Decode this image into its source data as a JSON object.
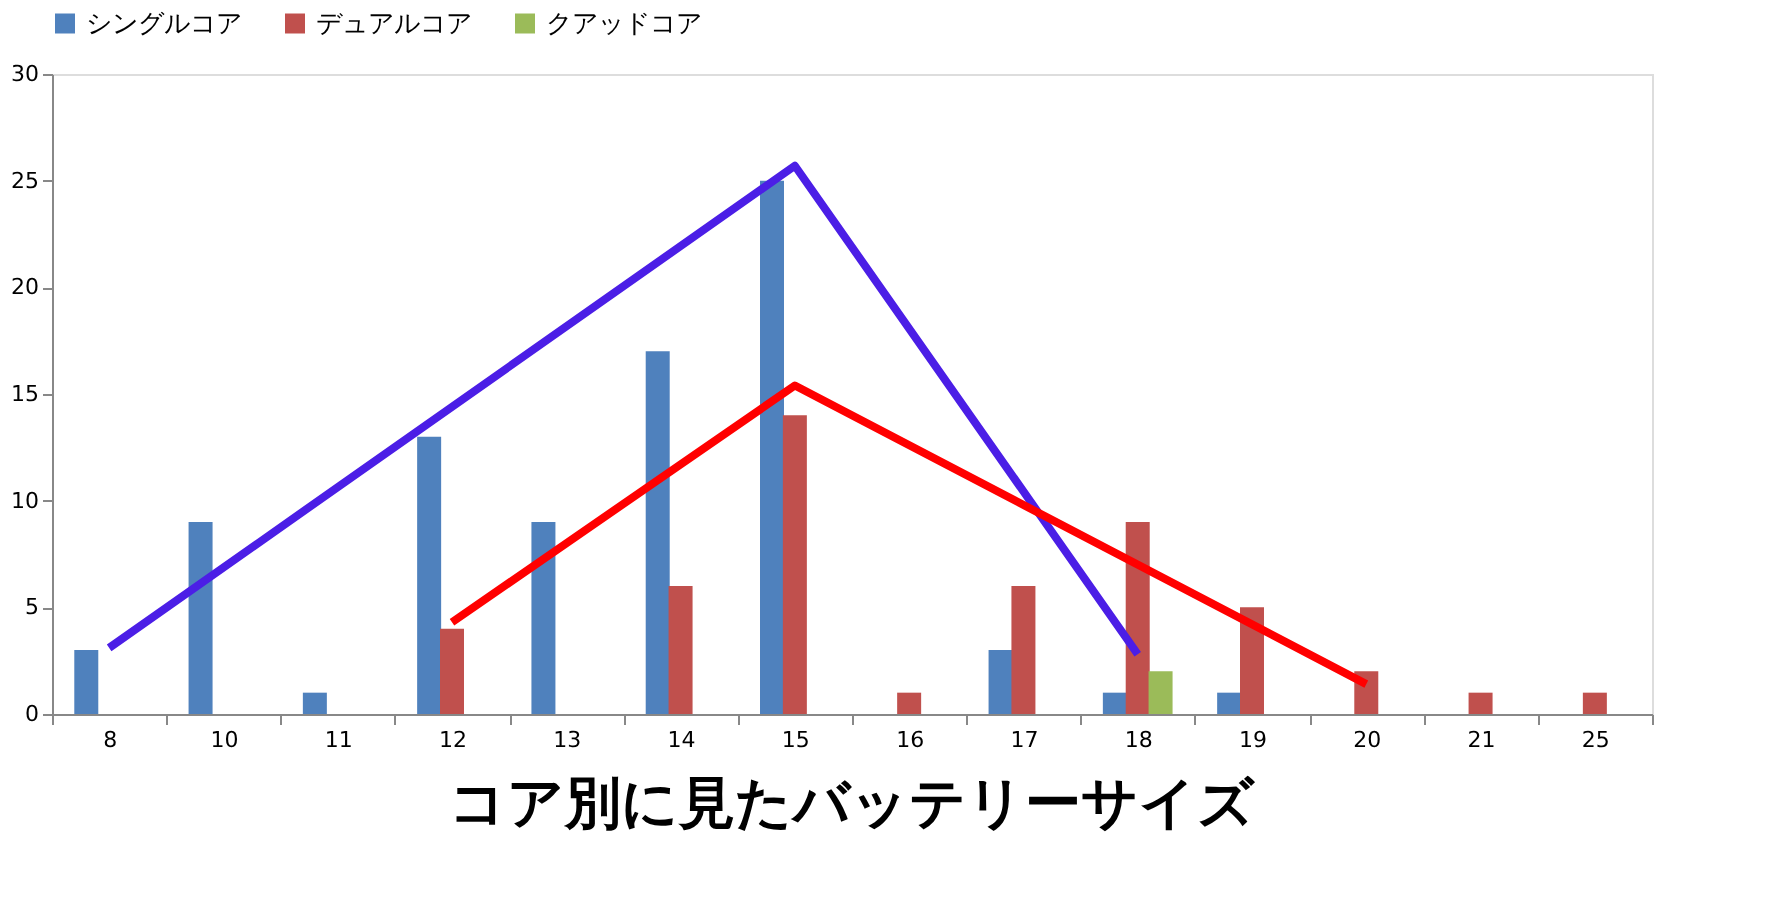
{
  "chart_data": {
    "type": "bar",
    "title": "コア別に見たバッテリーサイズ",
    "categories": [
      "8",
      "10",
      "11",
      "12",
      "13",
      "14",
      "15",
      "16",
      "17",
      "18",
      "19",
      "20",
      "21",
      "25"
    ],
    "series": [
      {
        "name": "シングルコア",
        "color": "#4f81bd",
        "values": [
          3,
          9,
          1,
          13,
          9,
          17,
          25,
          null,
          3,
          1,
          1,
          null,
          null,
          null
        ]
      },
      {
        "name": "デュアルコア",
        "color": "#c0504d",
        "values": [
          null,
          null,
          null,
          4,
          null,
          6,
          14,
          1,
          6,
          9,
          5,
          2,
          1,
          1
        ]
      },
      {
        "name": "クアッドコア",
        "color": "#9bbb59",
        "values": [
          null,
          null,
          null,
          null,
          null,
          null,
          null,
          null,
          null,
          2,
          null,
          null,
          null,
          null
        ]
      },
      {
        "type": "line",
        "color": "#4b1ee6",
        "x": [
          "8",
          "15",
          "18"
        ],
        "values": [
          3.1,
          25.7,
          2.8
        ]
      },
      {
        "type": "line",
        "color": "#ff0000",
        "x": [
          "12",
          "15",
          "20"
        ],
        "values": [
          4.3,
          15.4,
          1.4
        ]
      }
    ],
    "ylim": [
      0,
      30
    ],
    "yticks": [
      0,
      5,
      10,
      15,
      20,
      25,
      30
    ],
    "grid": false,
    "legend": "top"
  }
}
